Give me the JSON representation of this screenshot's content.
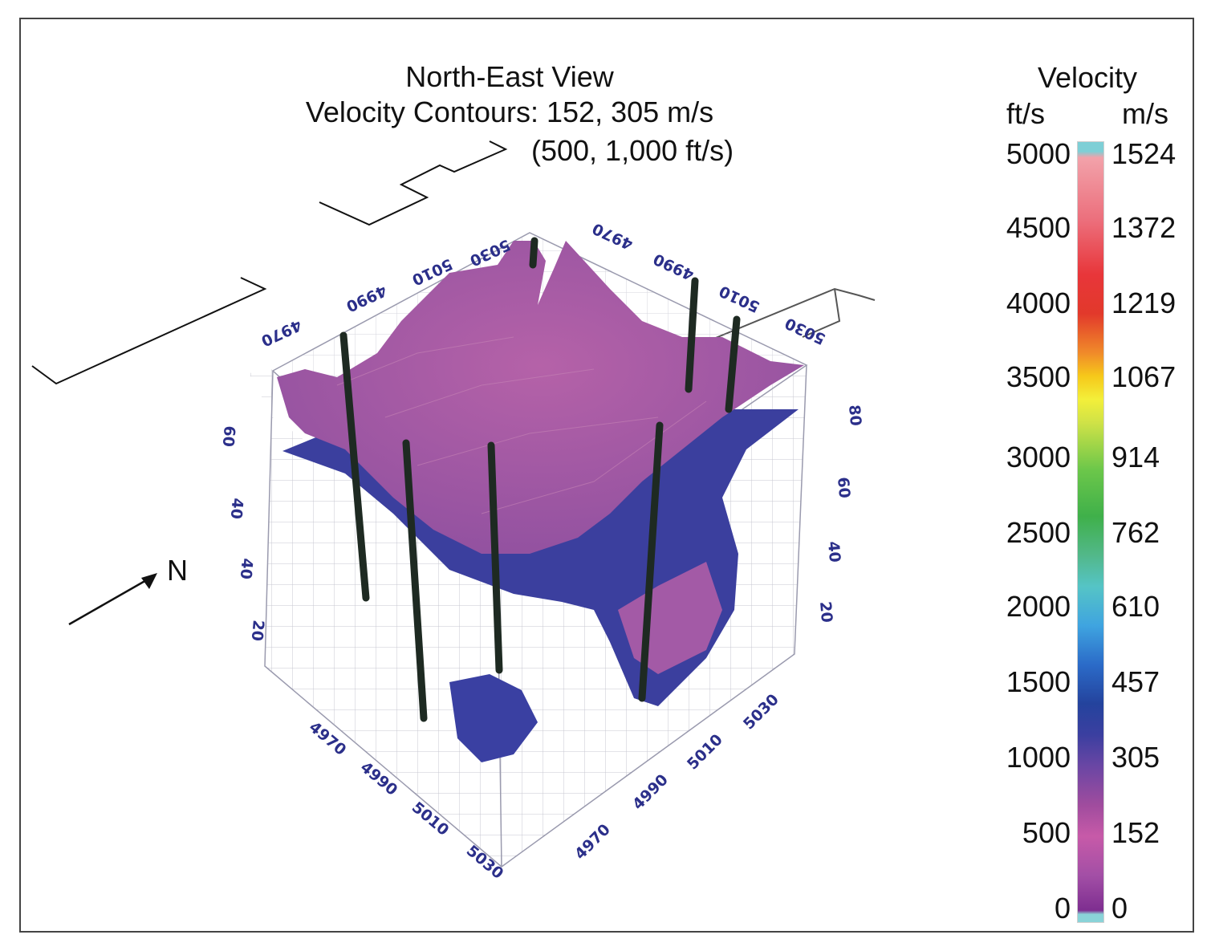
{
  "title": {
    "line1": "North-East View",
    "line2": "Velocity Contours: 152, 305 m/s",
    "line3": "(500, 1,000 ft/s)"
  },
  "north_label": "N",
  "axis_ticks": {
    "top_left": [
      "4970",
      "4990",
      "5010",
      "5030"
    ],
    "top_right": [
      "4970",
      "4990",
      "5010",
      "5030"
    ],
    "bottom_left": [
      "4970",
      "4990",
      "5010",
      "5030"
    ],
    "bottom_right": [
      "4970",
      "4990",
      "5010",
      "5030"
    ],
    "depth_left": [
      "60",
      "40",
      "40",
      "20"
    ],
    "depth_right": [
      "80",
      "60",
      "40",
      "20"
    ]
  },
  "legend": {
    "title": "Velocity",
    "unit_ft": "ft/s",
    "unit_m": "m/s",
    "ft_values": [
      "5000",
      "4500",
      "4000",
      "3500",
      "3000",
      "2500",
      "2000",
      "1500",
      "1000",
      "500",
      "0"
    ],
    "m_values": [
      "1524",
      "1372",
      "1219",
      "1067",
      "914",
      "762",
      "610",
      "457",
      "305",
      "152",
      "0"
    ]
  },
  "colors": {
    "surface_upper": "#a45aa0",
    "surface_lower": "#3a3f9e",
    "axis_text": "#2b2f8a",
    "boreholes": "#1e2a22"
  }
}
